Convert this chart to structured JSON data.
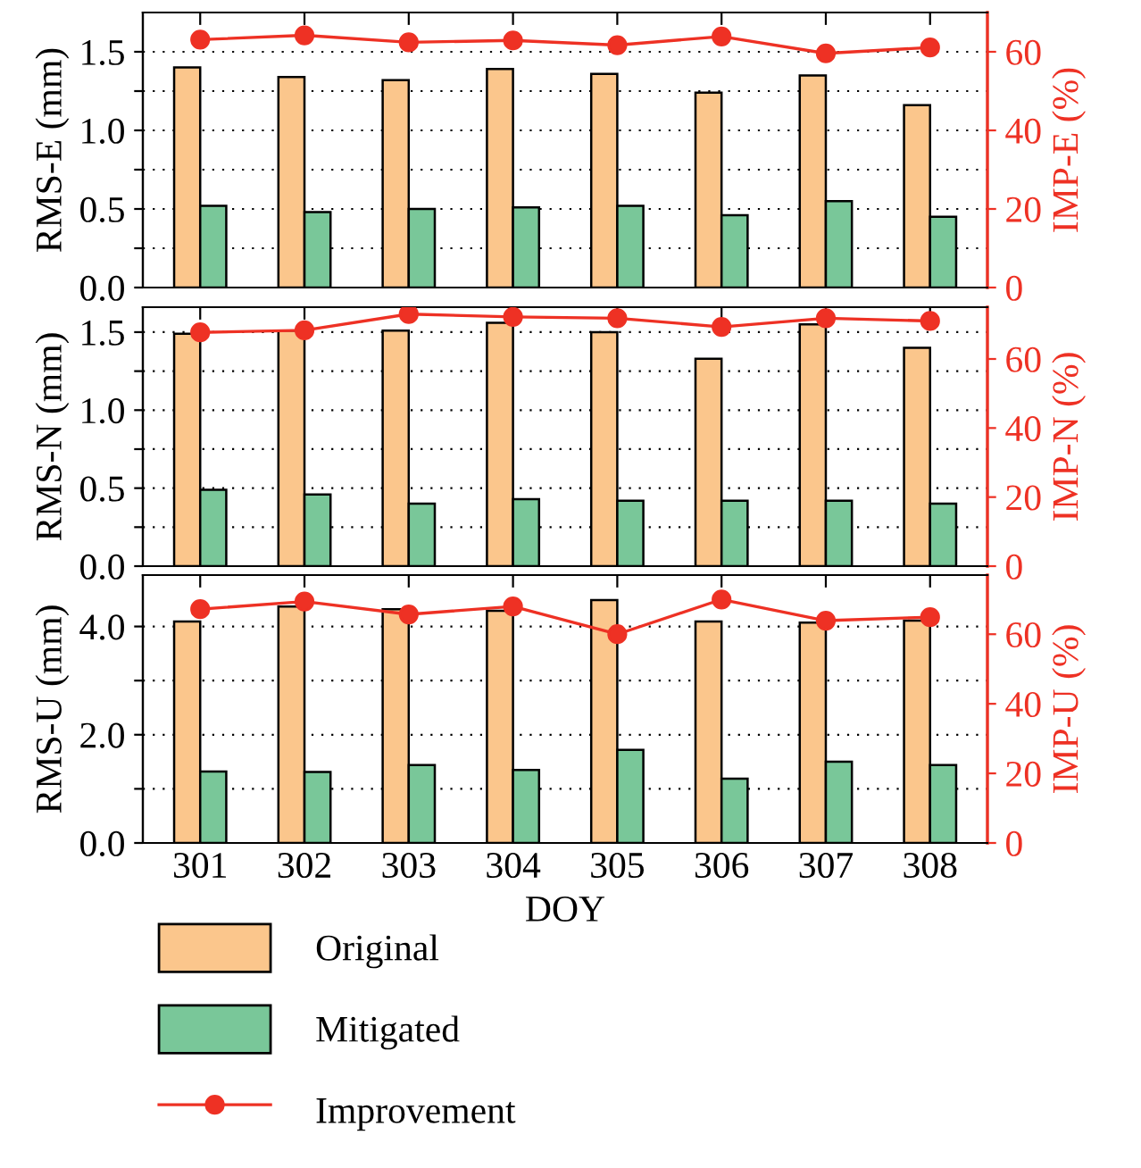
{
  "chart_data": [
    {
      "type": "bar",
      "categories": [
        "301",
        "302",
        "303",
        "304",
        "305",
        "306",
        "307",
        "308"
      ],
      "ylabel": "RMS-E (mm)",
      "y2label": "IMP-E (%)",
      "ylim": [
        0,
        1.75
      ],
      "yticks": [
        {
          "value": 0,
          "label": "0.0"
        },
        {
          "value": 0.25,
          "label": null
        },
        {
          "value": 0.5,
          "label": "0.5"
        },
        {
          "value": 0.75,
          "label": null
        },
        {
          "value": 1.0,
          "label": "1.0"
        },
        {
          "value": 1.25,
          "label": null
        },
        {
          "value": 1.5,
          "label": "1.5"
        }
      ],
      "y2lim": [
        0,
        70
      ],
      "y2ticks": [
        0,
        20,
        40,
        60
      ],
      "grid": "y",
      "tick_labels": "y",
      "marker": "circle",
      "series": [
        {
          "color": "#fbc68c",
          "values": [
            1.4,
            1.34,
            1.32,
            1.39,
            1.36,
            1.24,
            1.35,
            1.16
          ]
        },
        {
          "color": "#79c799",
          "values": [
            0.52,
            0.48,
            0.5,
            0.51,
            0.52,
            0.46,
            0.55,
            0.45
          ]
        },
        {
          "type": "line",
          "axis": "y2",
          "color": "#ee3124",
          "values": [
            63.1,
            64.2,
            62.4,
            62.9,
            61.7,
            63.9,
            59.6,
            61.1
          ]
        }
      ]
    },
    {
      "type": "bar",
      "categories": [
        "301",
        "302",
        "303",
        "304",
        "305",
        "306",
        "307",
        "308"
      ],
      "ylabel": "RMS-N (mm)",
      "y2label": "IMP-N (%)",
      "ylim": [
        0,
        1.66
      ],
      "yticks": [
        {
          "value": 0,
          "label": "0.0"
        },
        {
          "value": 0.25,
          "label": null
        },
        {
          "value": 0.5,
          "label": "0.5"
        },
        {
          "value": 0.75,
          "label": null
        },
        {
          "value": 1.0,
          "label": "1.0"
        },
        {
          "value": 1.25,
          "label": null
        },
        {
          "value": 1.5,
          "label": "1.5"
        }
      ],
      "y2lim": [
        0,
        75
      ],
      "y2ticks": [
        0,
        20,
        40,
        60
      ],
      "grid": "y",
      "tick_labels": "y",
      "marker": "circle",
      "series": [
        {
          "color": "#fbc68c",
          "values": [
            1.49,
            1.51,
            1.51,
            1.56,
            1.5,
            1.33,
            1.55,
            1.4
          ]
        },
        {
          "color": "#79c799",
          "values": [
            0.49,
            0.46,
            0.4,
            0.43,
            0.42,
            0.42,
            0.42,
            0.4
          ]
        },
        {
          "type": "line",
          "axis": "y2",
          "color": "#ee3124",
          "values": [
            67.7,
            68.3,
            73.0,
            72.2,
            71.8,
            69.3,
            71.8,
            71.0
          ]
        }
      ]
    },
    {
      "type": "bar",
      "categories": [
        "301",
        "302",
        "303",
        "304",
        "305",
        "306",
        "307",
        "308"
      ],
      "xlabel": "DOY",
      "ylabel": "RMS-U (mm)",
      "y2label": "IMP-U (%)",
      "ylim": [
        0,
        4.95
      ],
      "yticks": [
        {
          "value": 0,
          "label": "0.0"
        },
        {
          "value": 1,
          "label": null
        },
        {
          "value": 2,
          "label": "2.0"
        },
        {
          "value": 3,
          "label": null
        },
        {
          "value": 4,
          "label": "4.0"
        }
      ],
      "y2lim": [
        0,
        77
      ],
      "y2ticks": [
        0,
        20,
        40,
        60
      ],
      "grid": "y",
      "legend": "bottom",
      "marker": "circle",
      "series": [
        {
          "name": "Original",
          "color": "#fbc68c",
          "values": [
            4.09,
            4.37,
            4.32,
            4.29,
            4.49,
            4.09,
            4.07,
            4.11
          ]
        },
        {
          "name": "Mitigated",
          "color": "#79c799",
          "values": [
            1.32,
            1.31,
            1.44,
            1.35,
            1.72,
            1.19,
            1.5,
            1.44
          ]
        },
        {
          "type": "line",
          "name": "Improvement",
          "axis": "y2",
          "color": "#ee3124",
          "values": [
            67.2,
            69.4,
            65.7,
            68.0,
            60.0,
            70.0,
            63.9,
            64.9
          ]
        }
      ]
    }
  ]
}
